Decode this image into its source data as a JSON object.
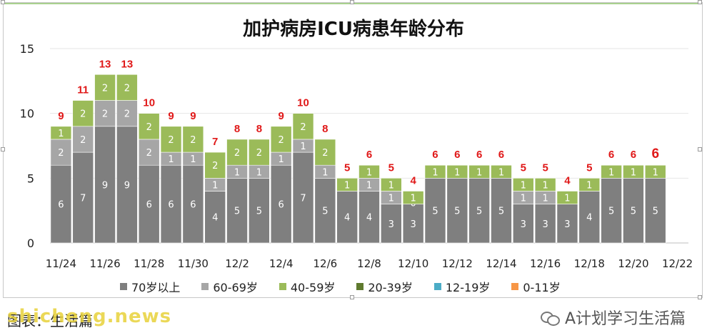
{
  "chart_data": {
    "type": "bar",
    "stacked": true,
    "title": "加护病房ICU病患年龄分布",
    "categories": [
      "11/24",
      "11/25",
      "11/26",
      "11/27",
      "11/28",
      "11/29",
      "11/30",
      "12/1",
      "12/2",
      "12/3",
      "12/4",
      "12/5",
      "12/6",
      "12/7",
      "12/8",
      "12/9",
      "12/10",
      "12/11",
      "12/12",
      "12/13",
      "12/14",
      "12/15",
      "12/16",
      "12/17",
      "12/18",
      "12/19",
      "12/20",
      "12/21",
      "12/22"
    ],
    "x_tick_labels": [
      "11/24",
      "11/26",
      "11/28",
      "11/30",
      "12/2",
      "12/4",
      "12/6",
      "12/8",
      "12/10",
      "12/12",
      "12/14",
      "12/16",
      "12/18",
      "12/20",
      "12/22"
    ],
    "ylim": [
      0,
      15
    ],
    "yticks": [
      0,
      5,
      10,
      15
    ],
    "grid": true,
    "legend_position": "bottom",
    "series": [
      {
        "name": "70岁以上",
        "color": "#7f7f7f",
        "values": [
          6,
          7,
          9,
          9,
          6,
          6,
          6,
          4,
          5,
          5,
          6,
          7,
          5,
          4,
          4,
          3,
          3,
          5,
          5,
          5,
          5,
          3,
          3,
          3,
          4,
          5,
          5,
          5,
          null
        ]
      },
      {
        "name": "60-69岁",
        "color": "#a6a6a6",
        "values": [
          2,
          2,
          2,
          2,
          2,
          1,
          1,
          1,
          1,
          1,
          1,
          1,
          1,
          0,
          1,
          1,
          0,
          0,
          0,
          0,
          0,
          1,
          1,
          0,
          0,
          0,
          0,
          0,
          null
        ]
      },
      {
        "name": "40-59岁",
        "color": "#9bbb59",
        "values": [
          1,
          2,
          2,
          2,
          2,
          2,
          2,
          2,
          2,
          2,
          2,
          2,
          2,
          1,
          1,
          1,
          1,
          1,
          1,
          1,
          1,
          1,
          1,
          1,
          1,
          1,
          1,
          1,
          null
        ]
      },
      {
        "name": "20-39岁",
        "color": "#5f7a2e",
        "values": [
          0,
          0,
          0,
          0,
          0,
          0,
          0,
          0,
          0,
          0,
          0,
          0,
          0,
          0,
          0,
          0,
          0,
          0,
          0,
          0,
          0,
          0,
          0,
          0,
          0,
          0,
          0,
          0,
          null
        ]
      },
      {
        "name": "12-19岁",
        "color": "#4bacc6",
        "values": [
          0,
          0,
          0,
          0,
          0,
          0,
          0,
          0,
          0,
          0,
          0,
          0,
          0,
          0,
          0,
          0,
          0,
          0,
          0,
          0,
          0,
          0,
          0,
          0,
          0,
          0,
          0,
          0,
          null
        ]
      },
      {
        "name": "0-11岁",
        "color": "#f79646",
        "values": [
          0,
          0,
          0,
          0,
          0,
          0,
          0,
          0,
          0,
          0,
          0,
          0,
          0,
          0,
          0,
          0,
          0,
          0,
          0,
          0,
          0,
          0,
          0,
          0,
          0,
          0,
          0,
          0,
          null
        ]
      }
    ],
    "totals": [
      9,
      11,
      13,
      13,
      10,
      9,
      9,
      7,
      8,
      8,
      9,
      10,
      8,
      5,
      6,
      5,
      4,
      6,
      6,
      6,
      6,
      5,
      5,
      4,
      5,
      6,
      6,
      6,
      null
    ],
    "label_zero_values": {
      "60-69岁": [
        16
      ]
    },
    "total_label_color": "#e01818"
  },
  "footer": {
    "source": "图表：生活篇",
    "watermark": "shicheng.news",
    "brand": "A计划学习生活篇",
    "brand_icon": "wechat-icon"
  }
}
